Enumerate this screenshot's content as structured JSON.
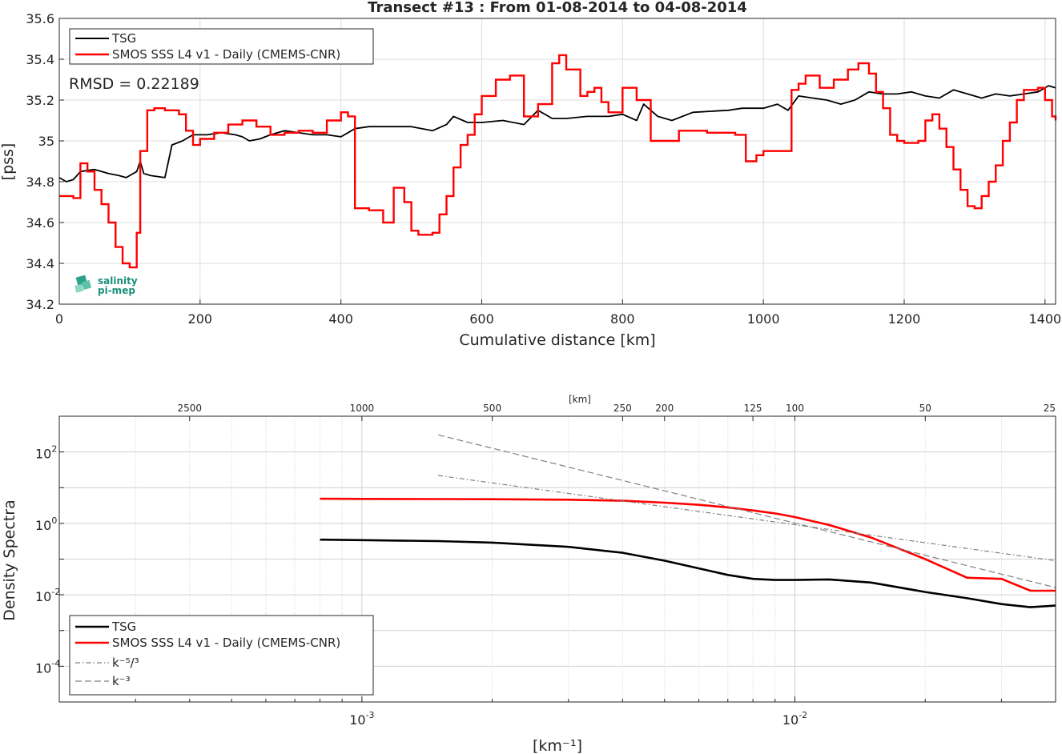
{
  "colors": {
    "tsg": "#000000",
    "smos": "#ff0000",
    "ref": "#808080",
    "grid": "#dcdcdc",
    "axis": "#262626",
    "logo": "#1a8f7a"
  },
  "logo": {
    "line1": "salinity",
    "line2": "pi-mep"
  },
  "chart_data": [
    {
      "type": "line",
      "title": "Transect #13 : From 01-08-2014 to 04-08-2014",
      "xlabel": "Cumulative distance [km]",
      "ylabel": "[pss]",
      "xlim": [
        0,
        1415
      ],
      "ylim": [
        34.2,
        35.6
      ],
      "grid": true,
      "legend_location": "top-left",
      "annotation": "RMSD = 0.22189",
      "xticks": [
        0,
        200,
        400,
        600,
        800,
        1000,
        1200,
        1400
      ],
      "xtick_labels": [
        "0",
        "200",
        "400",
        "600",
        "800",
        "1000",
        "1200",
        "1400"
      ],
      "yticks": [
        34.2,
        34.4,
        34.6,
        34.8,
        35.0,
        35.2,
        35.4,
        35.6
      ],
      "ytick_labels": [
        "34.2",
        "34.4",
        "34.6",
        "34.8",
        "35",
        "35.2",
        "35.4",
        "35.6"
      ],
      "series": [
        {
          "name": "TSG",
          "x": [
            0,
            10,
            20,
            30,
            50,
            70,
            85,
            95,
            110,
            115,
            120,
            130,
            150,
            155,
            160,
            175,
            190,
            210,
            230,
            250,
            260,
            270,
            285,
            300,
            320,
            340,
            360,
            380,
            400,
            410,
            420,
            440,
            460,
            500,
            530,
            550,
            560,
            580,
            600,
            630,
            660,
            680,
            700,
            720,
            750,
            780,
            800,
            820,
            830,
            850,
            870,
            900,
            950,
            970,
            1000,
            1020,
            1035,
            1050,
            1070,
            1090,
            1110,
            1130,
            1150,
            1170,
            1190,
            1210,
            1230,
            1250,
            1270,
            1290,
            1310,
            1330,
            1350,
            1370,
            1390,
            1405,
            1415
          ],
          "y": [
            34.82,
            34.8,
            34.81,
            34.85,
            34.86,
            34.84,
            34.83,
            34.82,
            34.85,
            34.9,
            34.84,
            34.83,
            34.82,
            34.9,
            34.98,
            35.0,
            35.03,
            35.03,
            35.04,
            35.03,
            35.02,
            35.0,
            35.01,
            35.03,
            35.05,
            35.04,
            35.03,
            35.03,
            35.02,
            35.04,
            35.06,
            35.07,
            35.07,
            35.07,
            35.05,
            35.08,
            35.12,
            35.09,
            35.09,
            35.1,
            35.08,
            35.15,
            35.11,
            35.11,
            35.12,
            35.12,
            35.13,
            35.1,
            35.18,
            35.12,
            35.1,
            35.14,
            35.15,
            35.16,
            35.16,
            35.18,
            35.15,
            35.22,
            35.21,
            35.2,
            35.18,
            35.2,
            35.24,
            35.23,
            35.23,
            35.24,
            35.22,
            35.21,
            35.25,
            35.23,
            35.21,
            35.23,
            35.22,
            35.23,
            35.24,
            35.27,
            35.26
          ]
        },
        {
          "name": "SMOS SSS L4 v1 - Daily (CMEMS-CNR)",
          "x": [
            0,
            20,
            30,
            40,
            50,
            60,
            70,
            80,
            90,
            100,
            110,
            115,
            125,
            135,
            150,
            170,
            180,
            190,
            200,
            220,
            240,
            260,
            280,
            300,
            320,
            340,
            360,
            380,
            400,
            410,
            420,
            440,
            460,
            475,
            490,
            500,
            510,
            530,
            540,
            550,
            560,
            570,
            580,
            590,
            600,
            620,
            640,
            660,
            680,
            700,
            710,
            720,
            740,
            750,
            760,
            770,
            780,
            800,
            820,
            840,
            880,
            920,
            960,
            975,
            990,
            1000,
            1030,
            1040,
            1050,
            1060,
            1080,
            1100,
            1120,
            1135,
            1150,
            1160,
            1170,
            1180,
            1190,
            1200,
            1210,
            1220,
            1230,
            1240,
            1250,
            1260,
            1270,
            1280,
            1290,
            1300,
            1310,
            1320,
            1330,
            1340,
            1350,
            1360,
            1370,
            1390,
            1400,
            1410,
            1415
          ],
          "y": [
            34.73,
            34.72,
            34.89,
            34.85,
            34.76,
            34.69,
            34.6,
            34.48,
            34.4,
            34.38,
            34.55,
            34.95,
            35.15,
            35.16,
            35.15,
            35.13,
            35.05,
            34.98,
            35.01,
            35.04,
            35.08,
            35.1,
            35.07,
            35.03,
            35.04,
            35.05,
            35.04,
            35.1,
            35.14,
            35.12,
            34.67,
            34.66,
            34.6,
            34.77,
            34.7,
            34.56,
            34.54,
            34.55,
            34.64,
            34.73,
            34.87,
            34.98,
            35.03,
            35.13,
            35.22,
            35.3,
            35.32,
            35.12,
            35.18,
            35.38,
            35.42,
            35.35,
            35.22,
            35.24,
            35.26,
            35.19,
            35.14,
            35.26,
            35.2,
            35.0,
            35.05,
            35.04,
            35.03,
            34.9,
            34.93,
            34.95,
            34.95,
            35.25,
            35.28,
            35.32,
            35.26,
            35.3,
            35.35,
            35.38,
            35.33,
            35.24,
            35.16,
            35.03,
            35.0,
            34.99,
            34.99,
            35.0,
            35.1,
            35.13,
            35.06,
            34.97,
            34.86,
            34.76,
            34.68,
            34.67,
            34.73,
            34.8,
            34.88,
            35.0,
            35.09,
            35.2,
            35.25,
            35.26,
            35.2,
            35.12,
            35.1
          ]
        }
      ]
    },
    {
      "type": "line",
      "title": "",
      "xlabel": "[km⁻¹]",
      "ylabel": "Density Spectra",
      "x_scale": "log",
      "y_scale": "log",
      "xlim": [
        0.0002,
        0.04
      ],
      "ylim": [
        1e-05,
        1000
      ],
      "grid": true,
      "legend_location": "bottom-left",
      "x_major_ticks": [
        0.001,
        0.01
      ],
      "y_major_ticks": [
        0.0001,
        0.01,
        1,
        100
      ],
      "top_axis_label": "[km]",
      "top_ticks": [
        "2500",
        "1000",
        "500",
        "250",
        "200",
        "125",
        "100",
        "50",
        "25"
      ],
      "top_tick_values_km": [
        2500,
        1000,
        500,
        250,
        200,
        125,
        100,
        50,
        25
      ],
      "series": [
        {
          "name": "TSG",
          "x": [
            0.0008,
            0.001,
            0.0015,
            0.002,
            0.003,
            0.004,
            0.005,
            0.006,
            0.007,
            0.008,
            0.009,
            0.01,
            0.012,
            0.015,
            0.02,
            0.025,
            0.03,
            0.035,
            0.04
          ],
          "y": [
            0.35,
            0.34,
            0.32,
            0.29,
            0.22,
            0.15,
            0.09,
            0.055,
            0.036,
            0.028,
            0.026,
            0.026,
            0.027,
            0.022,
            0.012,
            0.008,
            0.0055,
            0.0045,
            0.005
          ]
        },
        {
          "name": "SMOS SSS L4 v1 - Daily (CMEMS-CNR)",
          "x": [
            0.0008,
            0.001,
            0.0015,
            0.002,
            0.003,
            0.004,
            0.005,
            0.006,
            0.007,
            0.008,
            0.009,
            0.01,
            0.012,
            0.015,
            0.02,
            0.025,
            0.03,
            0.035,
            0.04
          ],
          "y": [
            4.9,
            4.85,
            4.8,
            4.75,
            4.6,
            4.3,
            3.8,
            3.3,
            2.8,
            2.3,
            1.9,
            1.5,
            0.9,
            0.4,
            0.1,
            0.03,
            0.028,
            0.013,
            0.013
          ]
        },
        {
          "name": "k⁻⁵/³",
          "x": [
            0.0015,
            0.04
          ],
          "y": [
            22,
            0.09
          ]
        },
        {
          "name": "k⁻³",
          "x": [
            0.0015,
            0.04
          ],
          "y": [
            300,
            0.016
          ]
        }
      ]
    }
  ]
}
